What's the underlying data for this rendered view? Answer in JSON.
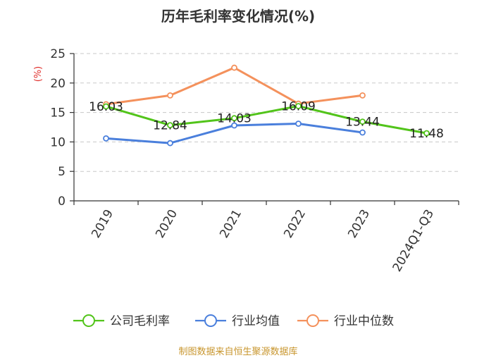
{
  "chart_data": {
    "type": "line",
    "title": "历年毛利率变化情况(%)",
    "ylabel": "(%)",
    "ylim": [
      0,
      25
    ],
    "yticks": [
      "0",
      "5",
      "10",
      "15",
      "20",
      "25"
    ],
    "categories": [
      "2019",
      "2020",
      "2021",
      "2022",
      "2023",
      "2024Q1-Q3"
    ],
    "grid": true,
    "legend_position": "bottom",
    "series": [
      {
        "name": "公司毛利率",
        "color": "#52c41a",
        "values": [
          16.03,
          12.84,
          14.03,
          16.09,
          13.44,
          11.48
        ],
        "labels": [
          "16.03",
          "12.84",
          "14.03",
          "16.09",
          "13.44",
          "11.48"
        ]
      },
      {
        "name": "行业均值",
        "color": "#4a7fdc",
        "values": [
          10.6,
          9.8,
          12.8,
          13.1,
          11.6,
          null
        ]
      },
      {
        "name": "行业中位数",
        "color": "#f4915c",
        "values": [
          16.4,
          17.9,
          22.6,
          16.5,
          17.9,
          null
        ]
      }
    ]
  },
  "footer": {
    "source": "制图数据来自恒生聚源数据库"
  }
}
